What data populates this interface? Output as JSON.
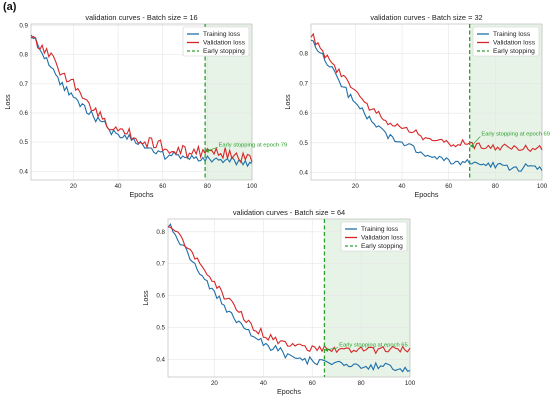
{
  "figure": {
    "panel_label": "(a)"
  },
  "colors": {
    "train": "#1f6fa8",
    "val": "#d62728",
    "stop": "#2ca02c",
    "shade": "#e7f3e7",
    "grid": "#e6e6e6"
  },
  "legend": {
    "train_label": "Training loss",
    "val_label": "Validation loss",
    "stop_label": "Early stopping"
  },
  "chart_data": [
    {
      "type": "line",
      "title": "validation curves - Batch size = 16",
      "xlabel": "Epochs",
      "ylabel": "Loss",
      "xlim": [
        1,
        100
      ],
      "ylim": [
        0.37,
        0.905
      ],
      "xticks": [
        20,
        40,
        60,
        80,
        100
      ],
      "yticks": [
        0.4,
        0.5,
        0.6,
        0.7,
        0.8,
        0.9
      ],
      "grid": true,
      "legend_position": "top-right",
      "early_stopping_epoch": 79,
      "annotation": "Early stopping at epoch 79",
      "annotation_point": [
        79,
        0.47
      ],
      "annotation_text_pos": [
        85,
        0.485
      ],
      "train_anchors": [
        [
          1,
          0.88
        ],
        [
          5,
          0.82
        ],
        [
          10,
          0.76
        ],
        [
          15,
          0.7
        ],
        [
          20,
          0.65
        ],
        [
          25,
          0.61
        ],
        [
          30,
          0.58
        ],
        [
          35,
          0.55
        ],
        [
          40,
          0.53
        ],
        [
          45,
          0.51
        ],
        [
          50,
          0.49
        ],
        [
          55,
          0.47
        ],
        [
          60,
          0.46
        ],
        [
          65,
          0.455
        ],
        [
          70,
          0.45
        ],
        [
          75,
          0.445
        ],
        [
          80,
          0.44
        ],
        [
          85,
          0.44
        ],
        [
          90,
          0.435
        ],
        [
          95,
          0.43
        ],
        [
          100,
          0.425
        ]
      ],
      "val_anchors": [
        [
          1,
          0.87
        ],
        [
          5,
          0.83
        ],
        [
          10,
          0.79
        ],
        [
          15,
          0.73
        ],
        [
          20,
          0.69
        ],
        [
          25,
          0.64
        ],
        [
          30,
          0.6
        ],
        [
          35,
          0.57
        ],
        [
          40,
          0.55
        ],
        [
          45,
          0.53
        ],
        [
          50,
          0.51
        ],
        [
          55,
          0.495
        ],
        [
          60,
          0.485
        ],
        [
          65,
          0.475
        ],
        [
          70,
          0.47
        ],
        [
          75,
          0.465
        ],
        [
          80,
          0.465
        ],
        [
          85,
          0.46
        ],
        [
          90,
          0.455
        ],
        [
          95,
          0.45
        ],
        [
          100,
          0.445
        ]
      ],
      "noise_train": 0.012,
      "noise_val": 0.018,
      "seed": 11
    },
    {
      "type": "line",
      "title": "validation curves - Batch size = 32",
      "xlabel": "Epochs",
      "ylabel": "Loss",
      "xlim": [
        1,
        100
      ],
      "ylim": [
        0.375,
        0.9
      ],
      "xticks": [
        20,
        40,
        60,
        80,
        100
      ],
      "yticks": [
        0.4,
        0.5,
        0.6,
        0.7,
        0.8
      ],
      "grid": true,
      "legend_position": "top-right",
      "early_stopping_epoch": 69,
      "annotation": "Early stopping at epoch 69",
      "annotation_point": [
        69,
        0.49
      ],
      "annotation_text_pos": [
        74,
        0.525
      ],
      "train_anchors": [
        [
          1,
          0.86
        ],
        [
          5,
          0.8
        ],
        [
          10,
          0.75
        ],
        [
          15,
          0.69
        ],
        [
          20,
          0.63
        ],
        [
          25,
          0.59
        ],
        [
          30,
          0.55
        ],
        [
          35,
          0.52
        ],
        [
          40,
          0.5
        ],
        [
          45,
          0.48
        ],
        [
          50,
          0.46
        ],
        [
          55,
          0.45
        ],
        [
          60,
          0.44
        ],
        [
          65,
          0.435
        ],
        [
          70,
          0.43
        ],
        [
          75,
          0.425
        ],
        [
          80,
          0.42
        ],
        [
          85,
          0.42
        ],
        [
          90,
          0.415
        ],
        [
          95,
          0.415
        ],
        [
          100,
          0.41
        ]
      ],
      "val_anchors": [
        [
          1,
          0.87
        ],
        [
          5,
          0.82
        ],
        [
          10,
          0.77
        ],
        [
          15,
          0.72
        ],
        [
          20,
          0.67
        ],
        [
          25,
          0.63
        ],
        [
          30,
          0.6
        ],
        [
          35,
          0.57
        ],
        [
          40,
          0.55
        ],
        [
          45,
          0.53
        ],
        [
          50,
          0.52
        ],
        [
          55,
          0.51
        ],
        [
          60,
          0.5
        ],
        [
          65,
          0.495
        ],
        [
          70,
          0.49
        ],
        [
          75,
          0.485
        ],
        [
          80,
          0.485
        ],
        [
          85,
          0.485
        ],
        [
          90,
          0.485
        ],
        [
          95,
          0.48
        ],
        [
          100,
          0.48
        ]
      ],
      "noise_train": 0.01,
      "noise_val": 0.012,
      "seed": 23
    },
    {
      "type": "line",
      "title": "validation curves - Batch size = 64",
      "xlabel": "Epochs",
      "ylabel": "Loss",
      "xlim": [
        1,
        100
      ],
      "ylim": [
        0.345,
        0.84
      ],
      "xticks": [
        20,
        40,
        60,
        80,
        100
      ],
      "yticks": [
        0.4,
        0.5,
        0.6,
        0.7,
        0.8
      ],
      "grid": true,
      "legend_position": "top-right",
      "early_stopping_epoch": 65,
      "annotation": "Early stopping at epoch 65",
      "annotation_point": [
        65,
        0.43
      ],
      "annotation_text_pos": [
        71,
        0.44
      ],
      "train_anchors": [
        [
          1,
          0.82
        ],
        [
          5,
          0.78
        ],
        [
          10,
          0.72
        ],
        [
          15,
          0.66
        ],
        [
          20,
          0.61
        ],
        [
          25,
          0.56
        ],
        [
          30,
          0.52
        ],
        [
          35,
          0.48
        ],
        [
          40,
          0.45
        ],
        [
          45,
          0.43
        ],
        [
          50,
          0.41
        ],
        [
          55,
          0.4
        ],
        [
          60,
          0.395
        ],
        [
          65,
          0.39
        ],
        [
          70,
          0.39
        ],
        [
          75,
          0.385
        ],
        [
          80,
          0.38
        ],
        [
          85,
          0.38
        ],
        [
          90,
          0.375
        ],
        [
          95,
          0.37
        ],
        [
          100,
          0.37
        ]
      ],
      "val_anchors": [
        [
          1,
          0.83
        ],
        [
          5,
          0.79
        ],
        [
          10,
          0.74
        ],
        [
          15,
          0.69
        ],
        [
          20,
          0.64
        ],
        [
          25,
          0.59
        ],
        [
          30,
          0.55
        ],
        [
          35,
          0.51
        ],
        [
          40,
          0.48
        ],
        [
          45,
          0.46
        ],
        [
          50,
          0.45
        ],
        [
          55,
          0.44
        ],
        [
          60,
          0.435
        ],
        [
          65,
          0.43
        ],
        [
          70,
          0.43
        ],
        [
          75,
          0.43
        ],
        [
          80,
          0.43
        ],
        [
          85,
          0.43
        ],
        [
          90,
          0.43
        ],
        [
          95,
          0.43
        ],
        [
          100,
          0.43
        ]
      ],
      "noise_train": 0.01,
      "noise_val": 0.01,
      "seed": 37
    }
  ]
}
